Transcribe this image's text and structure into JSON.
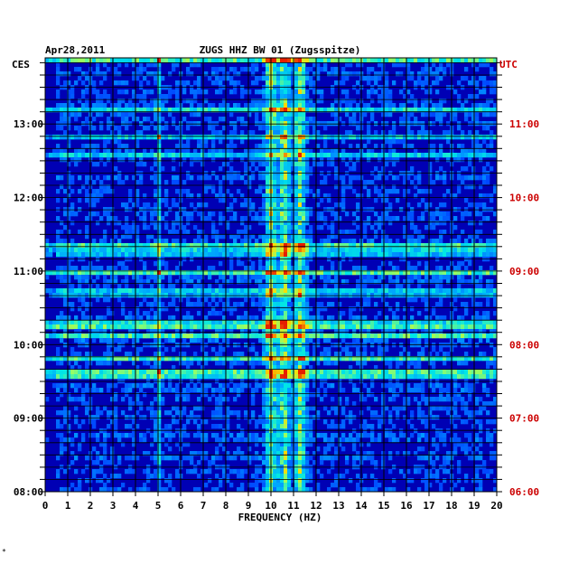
{
  "header": {
    "date": "Apr28,2011",
    "station": "ZUGS HHZ BW 01 (Zugsspitze)"
  },
  "colors": {
    "background": "#0000b4",
    "grid": "#000000",
    "utc_labels": "#cc0000",
    "ces_labels": "#000000"
  },
  "chart_data": {
    "type": "heatmap",
    "xlabel": "FREQUENCY (HZ)",
    "xlim": [
      0,
      20
    ],
    "x_ticks": [
      "0",
      "1",
      "2",
      "3",
      "4",
      "5",
      "6",
      "7",
      "8",
      "9",
      "10",
      "11",
      "12",
      "13",
      "14",
      "15",
      "16",
      "17",
      "18",
      "19",
      "20"
    ],
    "left_axis": {
      "title": "CES",
      "range_hours": [
        8.0,
        13.9
      ],
      "ticks": [
        {
          "hour": 13,
          "label": "13:00"
        },
        {
          "hour": 12,
          "label": "12:00"
        },
        {
          "hour": 11,
          "label": "11:00"
        },
        {
          "hour": 10,
          "label": "10:00"
        },
        {
          "hour": 9,
          "label": "09:00"
        },
        {
          "hour": 8,
          "label": "08:00"
        }
      ]
    },
    "right_axis": {
      "title": "UTC",
      "ticks": [
        {
          "hour": 13,
          "label": "11:00"
        },
        {
          "hour": 12,
          "label": "10:00"
        },
        {
          "hour": 11,
          "label": "09:00"
        },
        {
          "hour": 10,
          "label": "08:00"
        },
        {
          "hour": 9,
          "label": "07:00"
        },
        {
          "hour": 8,
          "label": "06:00"
        }
      ]
    },
    "dominant_bands_hz": [
      5.0,
      10.0,
      10.6,
      11.3
    ],
    "grid": true
  },
  "footer_mark": "*"
}
